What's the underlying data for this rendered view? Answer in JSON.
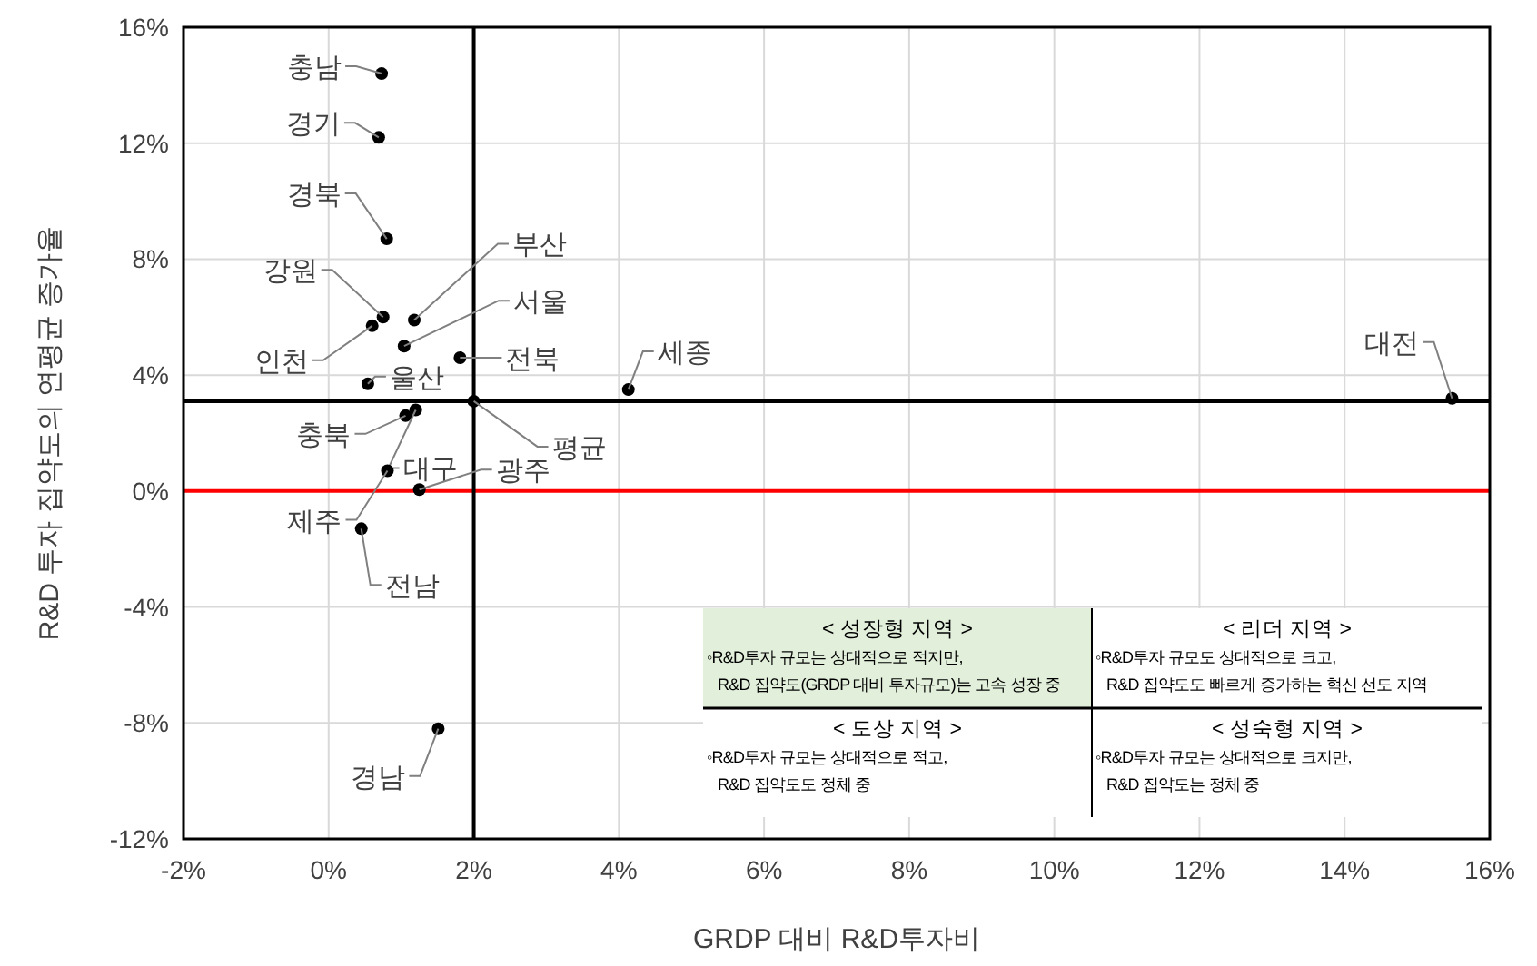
{
  "chart_data": {
    "type": "scatter",
    "xlabel": "GRDP 대비 R&D투자비",
    "ylabel": "R&D 투자 집약도의 연평균 증가율",
    "xlim": [
      -2,
      16
    ],
    "ylim": [
      -12,
      16
    ],
    "xticks": [
      {
        "value": -2,
        "label": "-2%"
      },
      {
        "value": 0,
        "label": "0%"
      },
      {
        "value": 2,
        "label": "2%"
      },
      {
        "value": 4,
        "label": "4%"
      },
      {
        "value": 6,
        "label": "6%"
      },
      {
        "value": 8,
        "label": "8%"
      },
      {
        "value": 10,
        "label": "10%"
      },
      {
        "value": 12,
        "label": "12%"
      },
      {
        "value": 14,
        "label": "14%"
      },
      {
        "value": 16,
        "label": "16%"
      }
    ],
    "yticks": [
      {
        "value": -12,
        "label": "-12%"
      },
      {
        "value": -8,
        "label": "-8%"
      },
      {
        "value": -4,
        "label": "-4%"
      },
      {
        "value": 0,
        "label": "0%"
      },
      {
        "value": 4,
        "label": "4%"
      },
      {
        "value": 8,
        "label": "8%"
      },
      {
        "value": 12,
        "label": "12%"
      },
      {
        "value": 16,
        "label": "16%"
      }
    ],
    "grid": true,
    "legend": false,
    "marker": "circle",
    "ref_lines": [
      {
        "axis": "y",
        "value": 0,
        "color": "#ff0000"
      },
      {
        "axis": "x",
        "value": 2.0,
        "color": "#000000"
      },
      {
        "axis": "y",
        "value": 3.1,
        "color": "#000000"
      }
    ],
    "series": [
      {
        "name": "충남",
        "color": "#000000",
        "x": [
          0.73
        ],
        "values": [
          14.4
        ]
      },
      {
        "name": "경기",
        "color": "#000000",
        "x": [
          0.69
        ],
        "values": [
          12.2
        ]
      },
      {
        "name": "경북",
        "color": "#000000",
        "x": [
          0.8
        ],
        "values": [
          8.7
        ]
      },
      {
        "name": "강원",
        "color": "#000000",
        "x": [
          0.75
        ],
        "values": [
          6.0
        ]
      },
      {
        "name": "인천",
        "color": "#000000",
        "x": [
          0.6
        ],
        "values": [
          5.7
        ]
      },
      {
        "name": "부산",
        "color": "#000000",
        "x": [
          1.18
        ],
        "values": [
          5.9
        ]
      },
      {
        "name": "서울",
        "color": "#000000",
        "x": [
          1.04
        ],
        "values": [
          5.0
        ]
      },
      {
        "name": "전북",
        "color": "#000000",
        "x": [
          1.81
        ],
        "values": [
          4.6
        ]
      },
      {
        "name": "울산",
        "color": "#000000",
        "x": [
          0.54
        ],
        "values": [
          3.7
        ]
      },
      {
        "name": "세종",
        "color": "#000000",
        "x": [
          4.13
        ],
        "values": [
          3.5
        ]
      },
      {
        "name": "평균",
        "color": "#000000",
        "x": [
          2.0
        ],
        "values": [
          3.1
        ]
      },
      {
        "name": "충북",
        "color": "#000000",
        "x": [
          1.06
        ],
        "values": [
          2.6
        ]
      },
      {
        "name": "대구",
        "color": "#000000",
        "x": [
          1.2
        ],
        "values": [
          2.8
        ]
      },
      {
        "name": "광주",
        "color": "#000000",
        "x": [
          1.25
        ],
        "values": [
          0.05
        ]
      },
      {
        "name": "제주",
        "color": "#000000",
        "x": [
          0.81
        ],
        "values": [
          0.7
        ]
      },
      {
        "name": "전남",
        "color": "#000000",
        "x": [
          0.45
        ],
        "values": [
          -1.3
        ]
      },
      {
        "name": "경남",
        "color": "#000000",
        "x": [
          1.51
        ],
        "values": [
          -8.2
        ]
      },
      {
        "name": "대전",
        "color": "#000000",
        "x": [
          15.48
        ],
        "values": [
          3.2
        ]
      }
    ],
    "annotations": [
      "< 성장형 지역 >",
      "◦R&D투자 규모는 상대적으로 적지만,",
      "R&D 집약도(GRDP 대비 투자규모)는 고속 성장 중",
      "< 리더 지역 >",
      "◦R&D투자 규모도 상대적으로 크고,",
      "R&D 집약도도 빠르게 증가하는 혁신 선도 지역",
      "< 도상 지역 >",
      "◦R&D투자 규모는 상대적으로 적고,",
      "R&D 집약도도 정체 중",
      "< 성숙형 지역 >",
      "◦R&D투자 규모는 상대적으로 크지만,",
      "R&D 집약도는 정체 중"
    ]
  }
}
